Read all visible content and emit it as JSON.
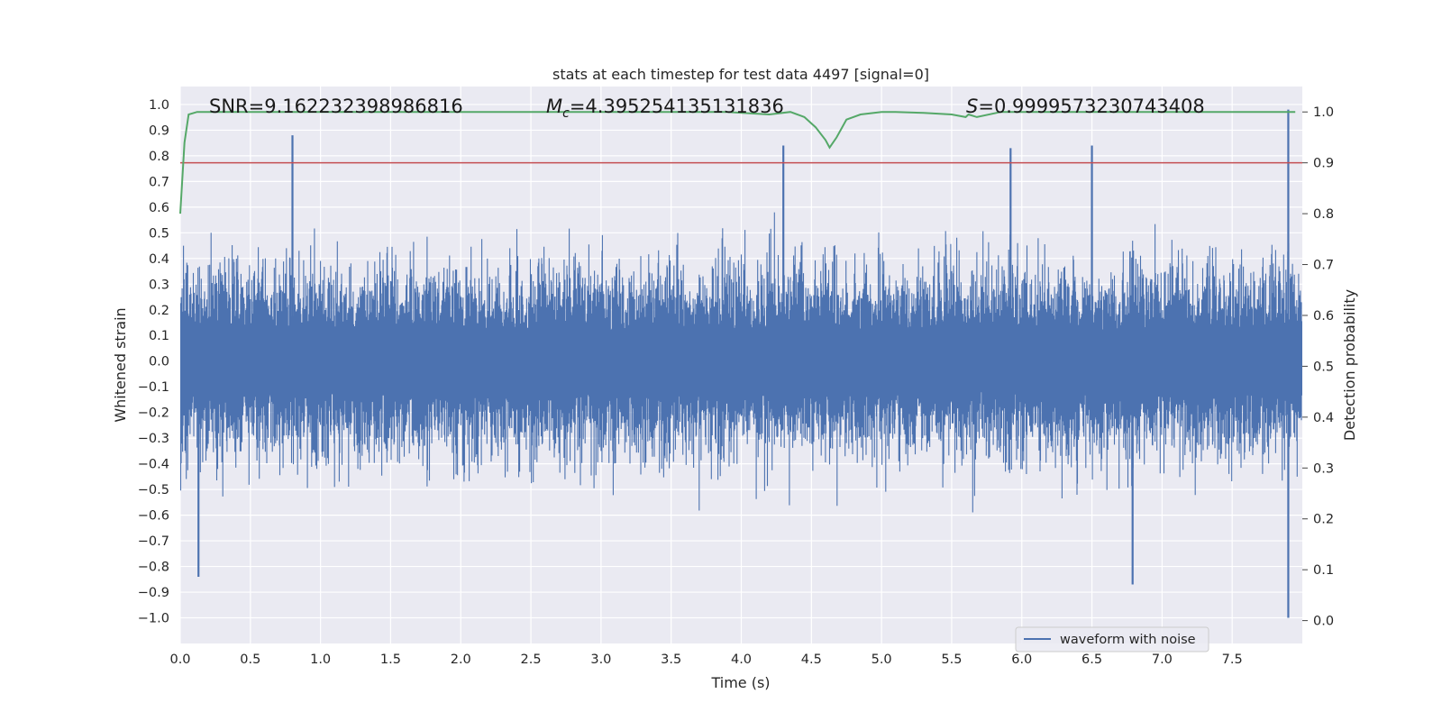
{
  "chart_data": {
    "type": "line",
    "title": "stats at each timestep for test data 4497 [signal=0]",
    "xlabel": "Time (s)",
    "ylabel": "Whitened strain",
    "y2label": "Detection probability",
    "xlim": [
      0,
      8
    ],
    "ylim": [
      -1.1,
      1.07
    ],
    "y2lim": [
      -0.045,
      1.05
    ],
    "x_ticks": [
      "0.0",
      "0.5",
      "1.0",
      "1.5",
      "2.0",
      "2.5",
      "3.0",
      "3.5",
      "4.0",
      "4.5",
      "5.0",
      "5.5",
      "6.0",
      "6.5",
      "7.0",
      "7.5"
    ],
    "y_ticks": [
      "1.0",
      "0.9",
      "0.8",
      "0.7",
      "0.6",
      "0.5",
      "0.4",
      "0.3",
      "0.2",
      "0.1",
      "0.0",
      "−0.1",
      "−0.2",
      "−0.3",
      "−0.4",
      "−0.5",
      "−0.6",
      "−0.7",
      "−0.8",
      "−0.9",
      "−1.0"
    ],
    "y2_ticks": [
      "1.0",
      "0.9",
      "0.8",
      "0.7",
      "0.6",
      "0.5",
      "0.4",
      "0.3",
      "0.2",
      "0.1",
      "0.0"
    ],
    "annotations": {
      "snr": "SNR=9.162232398986816",
      "mc_symbol": "M",
      "mc_sub": "c",
      "mc_value": "=4.395254135131836",
      "s_symbol": "S",
      "s_value": "=0.9999573230743408"
    },
    "series": [
      {
        "name": "waveform with noise",
        "axis": "left",
        "color": "#4c72b0",
        "style": "dense noise trace",
        "envelope_typical": [
          -0.35,
          0.35
        ],
        "peaks": [
          {
            "x": 0.13,
            "y": -0.84
          },
          {
            "x": 0.8,
            "y": 0.88
          },
          {
            "x": 4.3,
            "y": 0.84
          },
          {
            "x": 5.92,
            "y": 0.83
          },
          {
            "x": 6.5,
            "y": 0.84
          },
          {
            "x": 6.79,
            "y": -0.87
          },
          {
            "x": 7.9,
            "y": 0.98
          },
          {
            "x": 7.9,
            "y": -1.0
          }
        ]
      },
      {
        "name": "detection probability",
        "axis": "right",
        "color": "#55a868",
        "x": [
          0.0,
          0.03,
          0.06,
          0.12,
          1.0,
          2.0,
          3.0,
          3.9,
          4.2,
          4.35,
          4.45,
          4.53,
          4.6,
          4.63,
          4.68,
          4.75,
          4.85,
          5.0,
          5.1,
          5.3,
          5.5,
          5.6,
          5.62,
          5.68,
          5.85,
          6.0,
          7.0,
          7.95
        ],
        "y": [
          0.8,
          0.94,
          0.995,
          1.0,
          1.0,
          1.0,
          1.0,
          1.0,
          0.995,
          1.0,
          0.99,
          0.97,
          0.945,
          0.93,
          0.95,
          0.985,
          0.995,
          1.0,
          1.0,
          0.998,
          0.995,
          0.99,
          0.995,
          0.99,
          1.0,
          1.0,
          1.0,
          1.0
        ]
      },
      {
        "name": "threshold",
        "axis": "right",
        "color": "#c44e52",
        "value": 0.9
      }
    ],
    "legend": {
      "label": "waveform with noise",
      "position": "lower-right"
    }
  }
}
